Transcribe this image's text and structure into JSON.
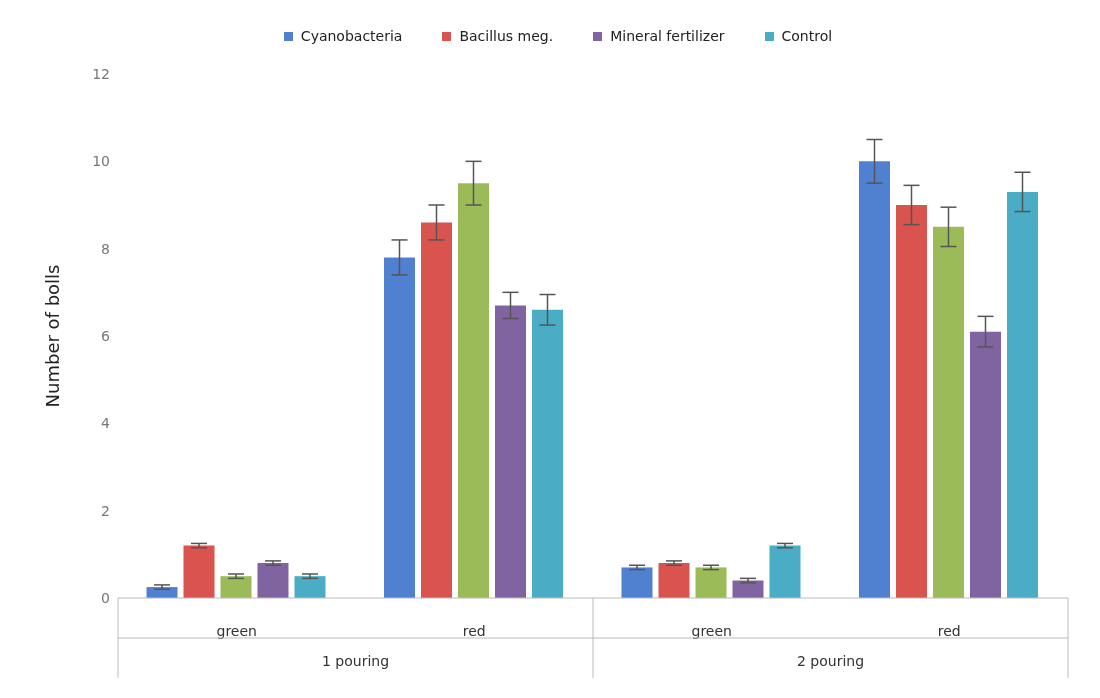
{
  "chart_data": {
    "type": "bar",
    "ylabel": "Number of bolls",
    "categories": [
      "green",
      "red",
      "green",
      "red"
    ],
    "annotations": [
      "1 pouring",
      "2 pouring"
    ],
    "series": [
      {
        "name": "Cyanobacteria",
        "color": "#4f81d0",
        "values": [
          0.25,
          7.8,
          0.7,
          10.0
        ],
        "errors": [
          0.05,
          0.4,
          0.05,
          0.5
        ]
      },
      {
        "name": "Bacillus meg.",
        "color": "#d9534f",
        "values": [
          1.2,
          8.6,
          0.8,
          9.0
        ],
        "errors": [
          0.05,
          0.4,
          0.05,
          0.45
        ]
      },
      {
        "color": "#9bbb59",
        "values": [
          0.5,
          9.5,
          0.7,
          8.5
        ],
        "errors": [
          0.05,
          0.5,
          0.05,
          0.45
        ]
      },
      {
        "name": "Mineral fertilizer",
        "color": "#8064a2",
        "values": [
          0.8,
          6.7,
          0.4,
          6.1
        ],
        "errors": [
          0.05,
          0.3,
          0.05,
          0.35
        ]
      },
      {
        "name": "Control",
        "color": "#4bacc6",
        "values": [
          0.5,
          6.6,
          1.2,
          9.3
        ],
        "errors": [
          0.05,
          0.35,
          0.05,
          0.45
        ]
      }
    ],
    "ylim": [
      0,
      12
    ],
    "yticks": [
      0,
      2,
      4,
      6,
      8,
      10,
      12
    ],
    "grid": false,
    "legend": "top"
  }
}
